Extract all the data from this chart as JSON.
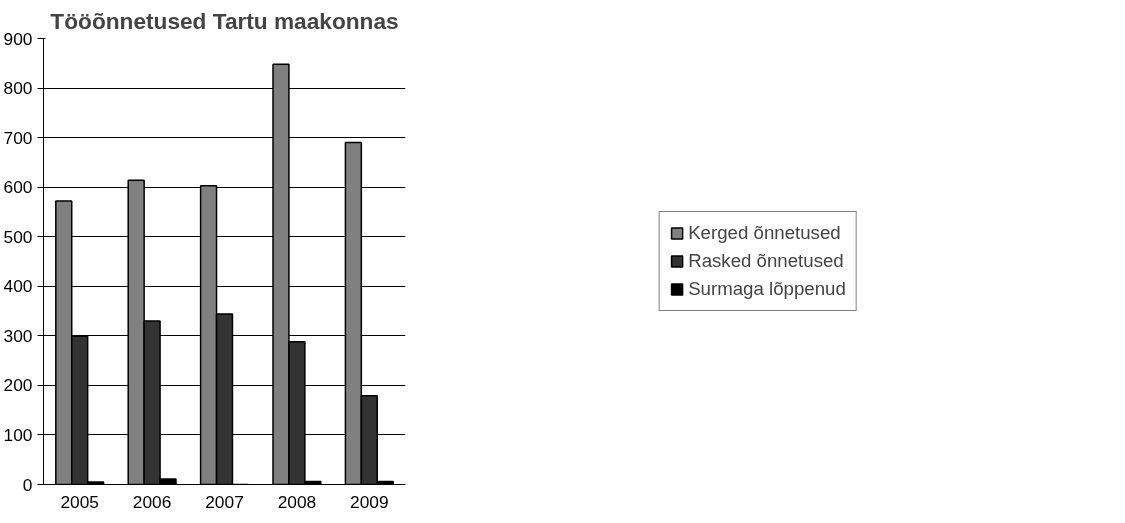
{
  "chart_data": {
    "type": "bar",
    "title": "Tööõnnetused Tartu maakonnas",
    "categories": [
      "2005",
      "2006",
      "2007",
      "2008",
      "2009"
    ],
    "series": [
      {
        "name": "Kerged õnnetused",
        "color": "#808080",
        "values": [
          572,
          614,
          603,
          848,
          690
        ]
      },
      {
        "name": "Rasked õnnetused",
        "color": "#333333",
        "values": [
          299,
          330,
          344,
          288,
          179
        ]
      },
      {
        "name": "Surmaga lõppenud",
        "color": "#000000",
        "values": [
          5,
          11,
          0,
          6,
          6
        ]
      }
    ],
    "ylim": [
      0,
      900
    ],
    "yticks": [
      0,
      100,
      200,
      300,
      400,
      500,
      600,
      700,
      800,
      900
    ],
    "grid": "y",
    "legend": "right"
  }
}
